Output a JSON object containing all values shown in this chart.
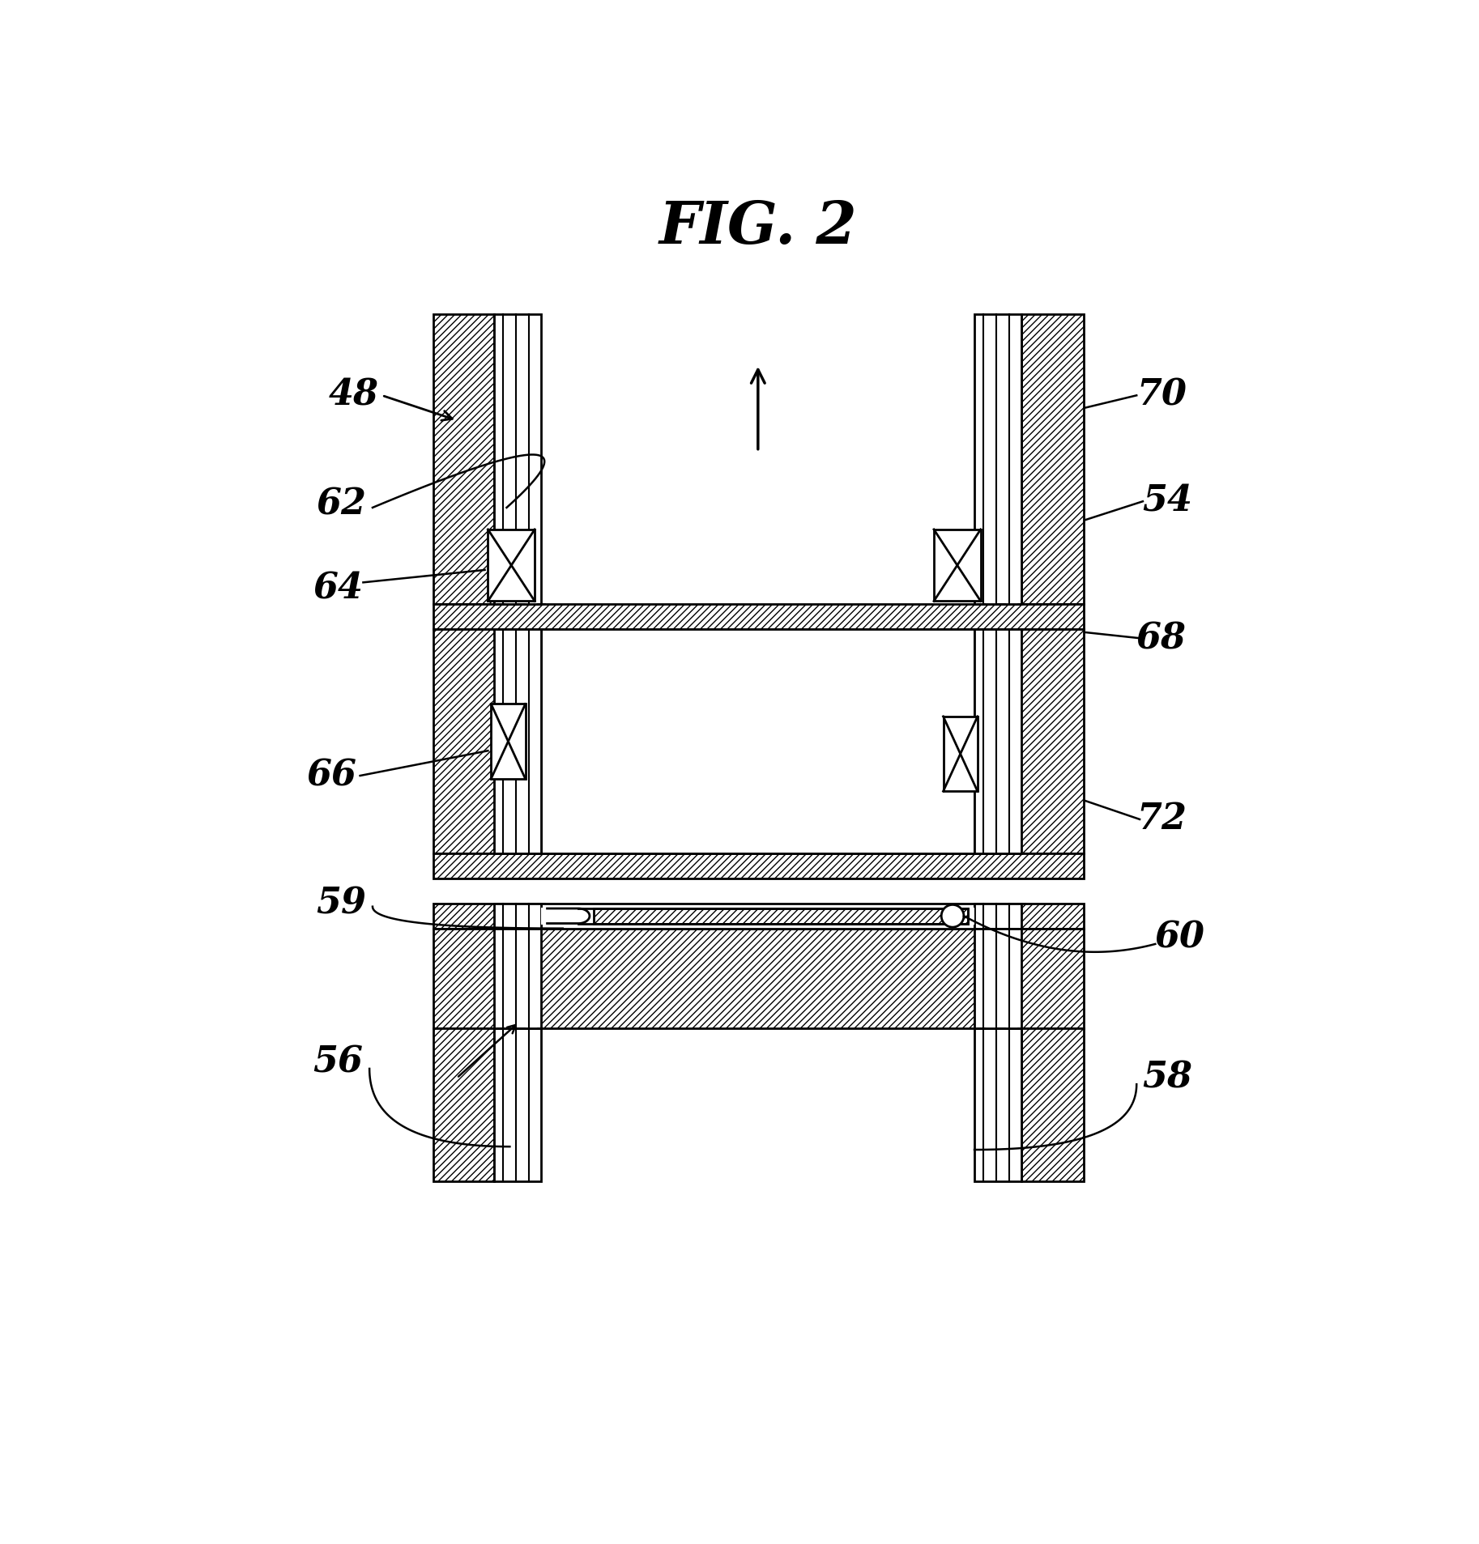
{
  "title": "FIG. 2",
  "background_color": "#ffffff",
  "fig_width": 18.26,
  "fig_height": 19.07
}
